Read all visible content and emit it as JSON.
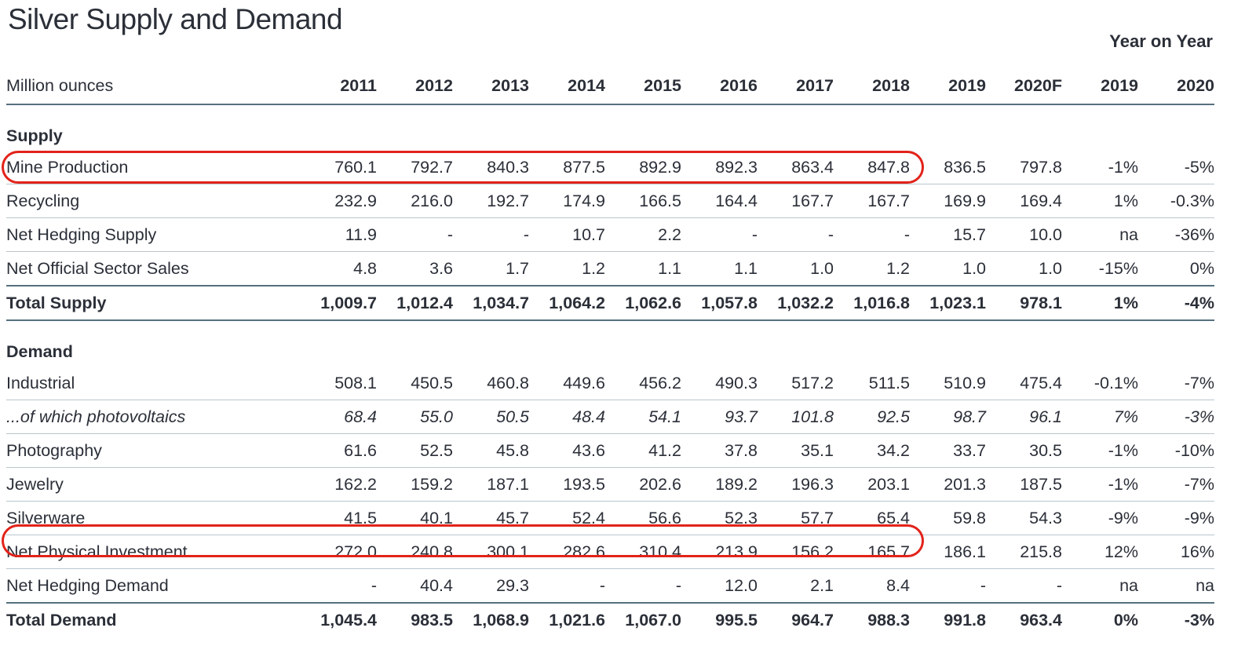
{
  "title": "Silver Supply and Demand",
  "yoy_label": "Year on Year",
  "unit_label": "Million ounces",
  "columns": [
    "2011",
    "2012",
    "2013",
    "2014",
    "2015",
    "2016",
    "2017",
    "2018",
    "2019",
    "2020F",
    "2019",
    "2020"
  ],
  "supply": {
    "heading": "Supply",
    "rows": [
      {
        "label": "Mine Production",
        "values": [
          "760.1",
          "792.7",
          "840.3",
          "877.5",
          "892.9",
          "892.3",
          "863.4",
          "847.8",
          "836.5",
          "797.8",
          "-1%",
          "-5%"
        ]
      },
      {
        "label": "Recycling",
        "values": [
          "232.9",
          "216.0",
          "192.7",
          "174.9",
          "166.5",
          "164.4",
          "167.7",
          "167.7",
          "169.9",
          "169.4",
          "1%",
          "-0.3%"
        ]
      },
      {
        "label": "Net Hedging Supply",
        "values": [
          "11.9",
          "-",
          "-",
          "10.7",
          "2.2",
          "-",
          "-",
          "-",
          "15.7",
          "10.0",
          "na",
          "-36%"
        ]
      },
      {
        "label": "Net Official Sector Sales",
        "values": [
          "4.8",
          "3.6",
          "1.7",
          "1.2",
          "1.1",
          "1.1",
          "1.0",
          "1.2",
          "1.0",
          "1.0",
          "-15%",
          "0%"
        ]
      }
    ],
    "total": {
      "label": "Total Supply",
      "values": [
        "1,009.7",
        "1,012.4",
        "1,034.7",
        "1,064.2",
        "1,062.6",
        "1,057.8",
        "1,032.2",
        "1,016.8",
        "1,023.1",
        "978.1",
        "1%",
        "-4%"
      ]
    }
  },
  "demand": {
    "heading": "Demand",
    "rows": [
      {
        "label": "Industrial",
        "values": [
          "508.1",
          "450.5",
          "460.8",
          "449.6",
          "456.2",
          "490.3",
          "517.2",
          "511.5",
          "510.9",
          "475.4",
          "-0.1%",
          "-7%"
        ]
      },
      {
        "label": "...of which photovoltaics",
        "values": [
          "68.4",
          "55.0",
          "50.5",
          "48.4",
          "54.1",
          "93.7",
          "101.8",
          "92.5",
          "98.7",
          "96.1",
          "7%",
          "-3%"
        ]
      },
      {
        "label": "Photography",
        "values": [
          "61.6",
          "52.5",
          "45.8",
          "43.6",
          "41.2",
          "37.8",
          "35.1",
          "34.2",
          "33.7",
          "30.5",
          "-1%",
          "-10%"
        ]
      },
      {
        "label": "Jewelry",
        "values": [
          "162.2",
          "159.2",
          "187.1",
          "193.5",
          "202.6",
          "189.2",
          "196.3",
          "203.1",
          "201.3",
          "187.5",
          "-1%",
          "-7%"
        ]
      },
      {
        "label": "Silverware",
        "values": [
          "41.5",
          "40.1",
          "45.7",
          "52.4",
          "56.6",
          "52.3",
          "57.7",
          "65.4",
          "59.8",
          "54.3",
          "-9%",
          "-9%"
        ]
      },
      {
        "label": "Net Physical Investment",
        "values": [
          "272.0",
          "240.8",
          "300.1",
          "282.6",
          "310.4",
          "213.9",
          "156.2",
          "165.7",
          "186.1",
          "215.8",
          "12%",
          "16%"
        ]
      },
      {
        "label": "Net Hedging Demand",
        "values": [
          "-",
          "40.4",
          "29.3",
          "-",
          "-",
          "12.0",
          "2.1",
          "8.4",
          "-",
          "-",
          "na",
          "na"
        ]
      }
    ],
    "total": {
      "label": "Total Demand",
      "values": [
        "1,045.4",
        "983.5",
        "1,068.9",
        "1,021.6",
        "1,067.0",
        "995.5",
        "964.7",
        "988.3",
        "991.8",
        "963.4",
        "0%",
        "-3%"
      ]
    }
  },
  "highlight_color": "#e2231a"
}
